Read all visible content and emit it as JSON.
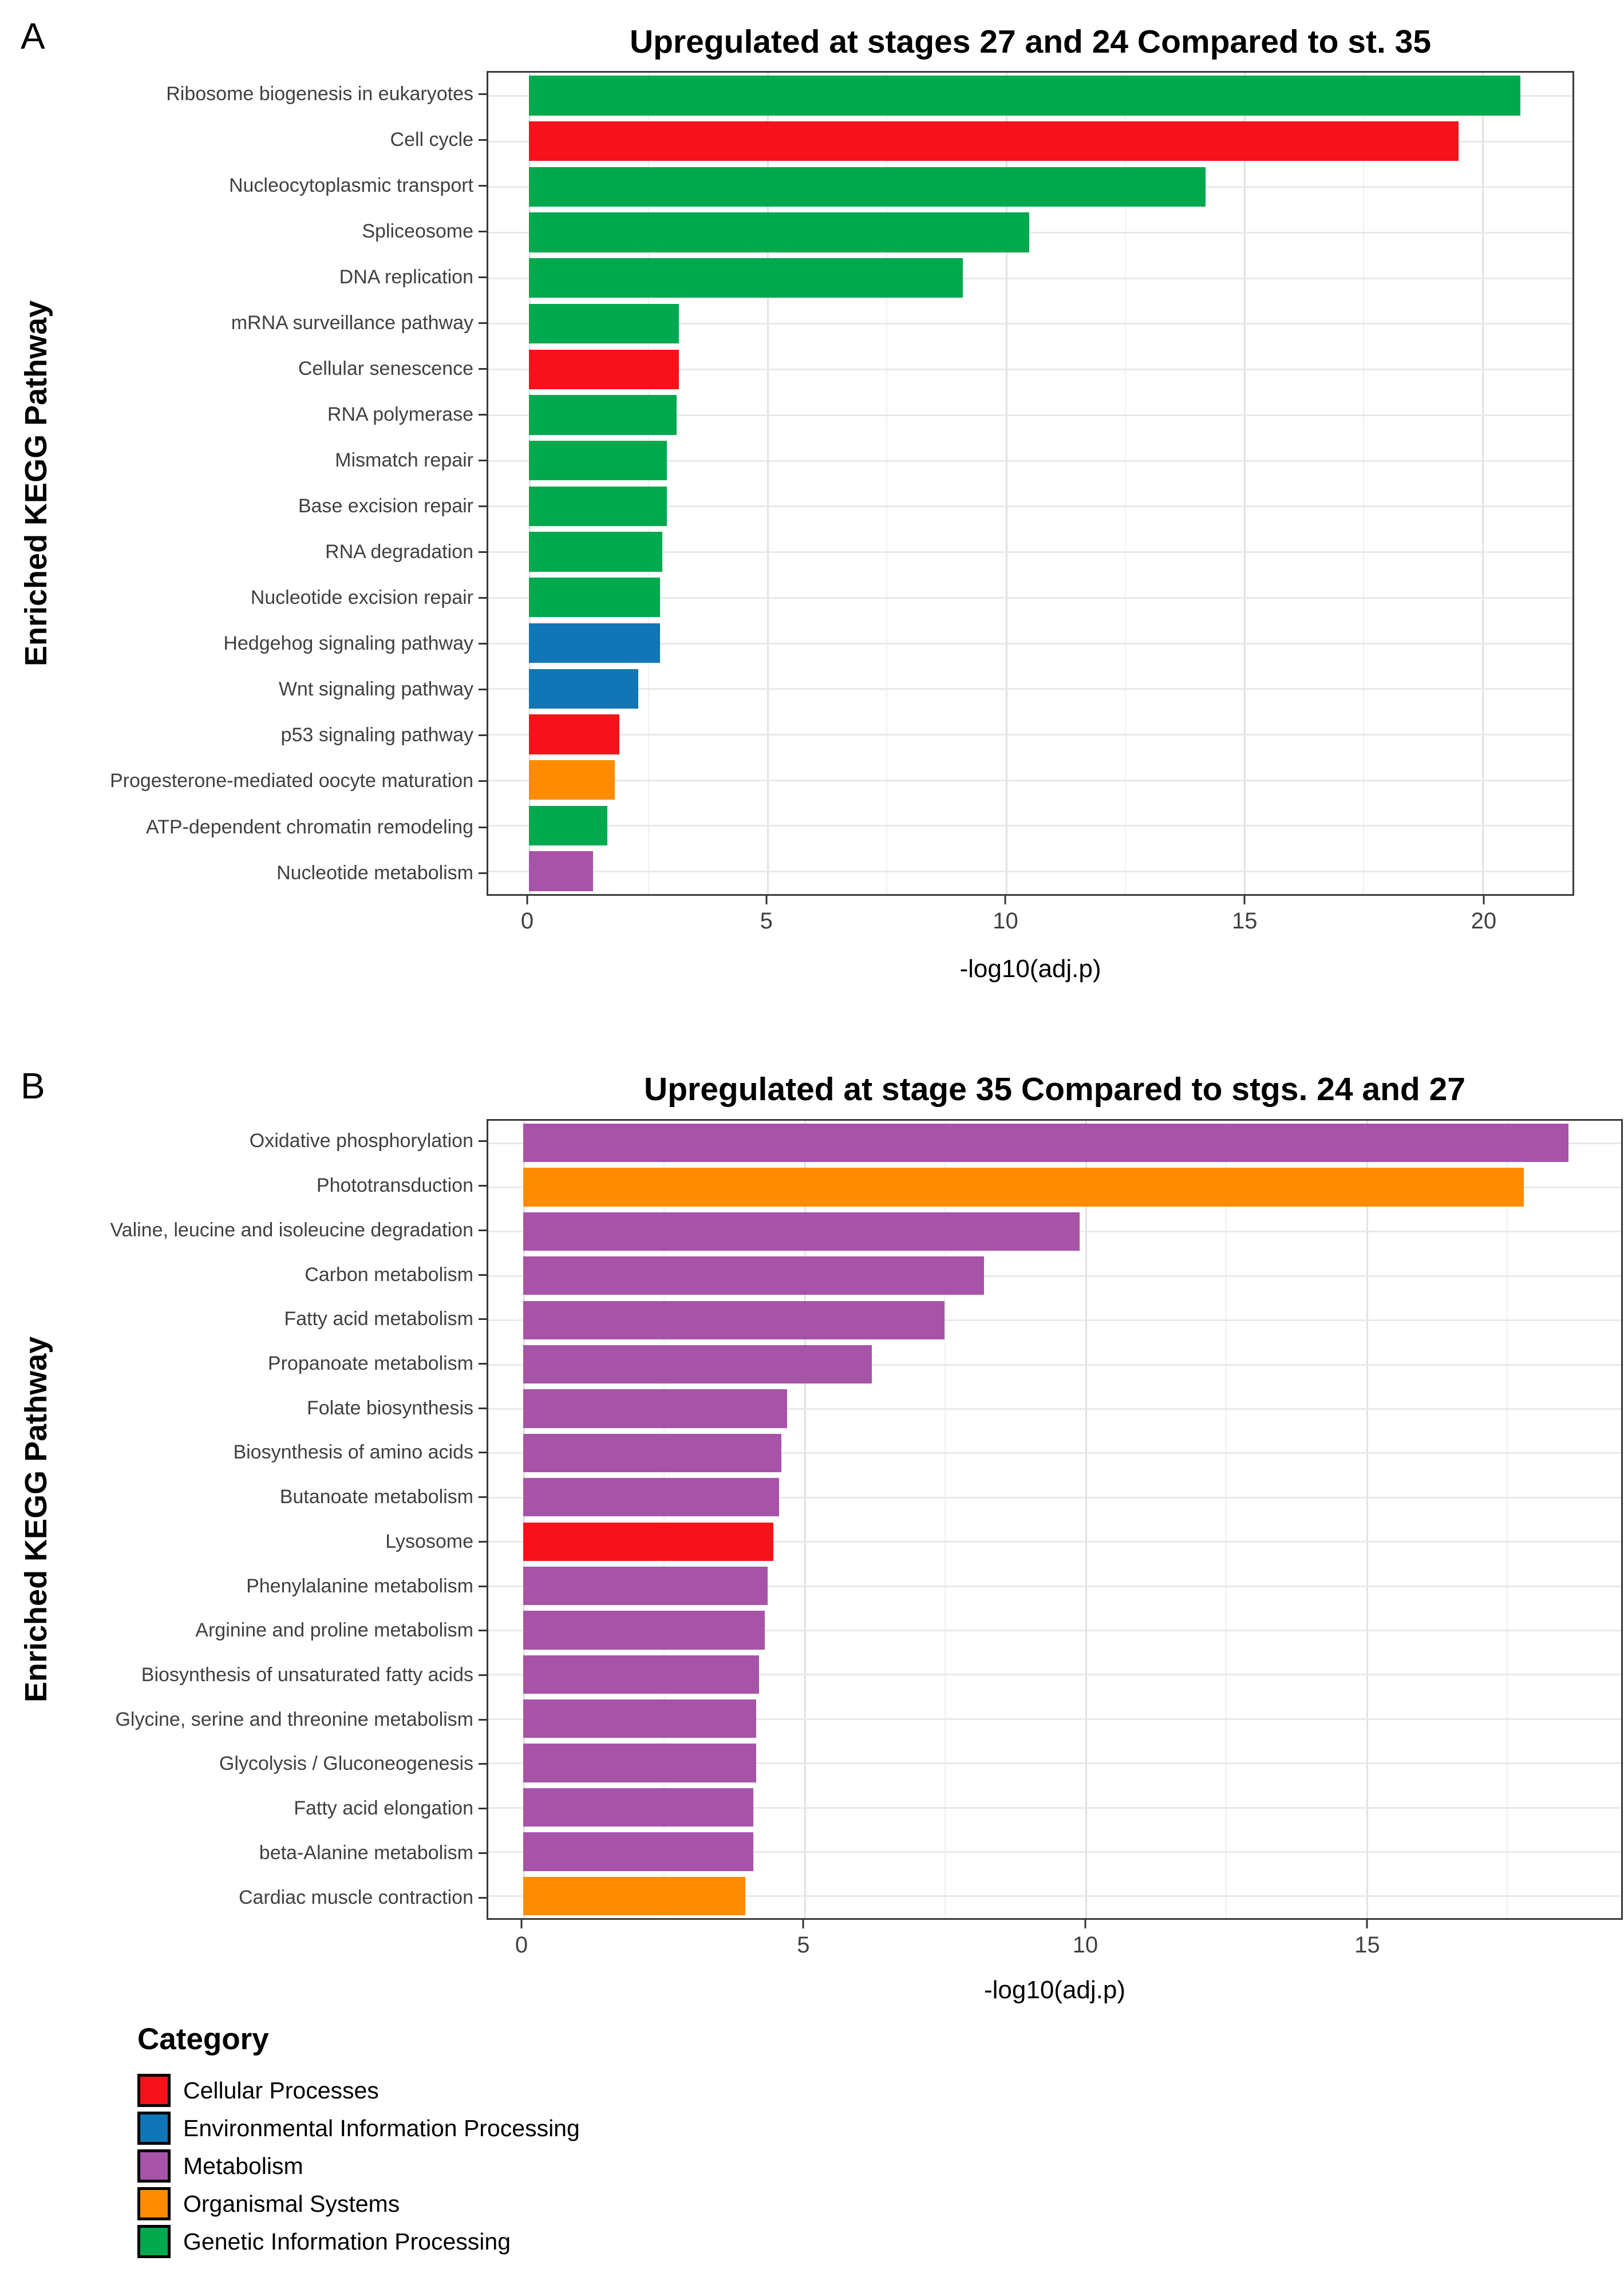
{
  "colors": {
    "Cellular Processes": "#f5121b",
    "Environmental Information Processing": "#1076b5",
    "Metabolism": "#a653a8",
    "Organismal Systems": "#ff8c00",
    "Genetic Information Processing": "#00a94d"
  },
  "legend": {
    "title": "Category",
    "items": [
      {
        "label": "Cellular Processes",
        "color": "#f5121b"
      },
      {
        "label": "Environmental Information Processing",
        "color": "#1076b5"
      },
      {
        "label": "Metabolism",
        "color": "#a653a8"
      },
      {
        "label": "Organismal Systems",
        "color": "#ff8c00"
      },
      {
        "label": "Genetic Information Processing",
        "color": "#00a94d"
      }
    ]
  },
  "chart_data": [
    {
      "type": "bar",
      "orientation": "horizontal",
      "panel_label": "A",
      "title": "Upregulated at stages 27 and 24 Compared to st. 35",
      "xlabel": "-log10(adj.p)",
      "ylabel": "Enriched KEGG Pathway",
      "xlim": [
        0,
        21.8
      ],
      "xticks": [
        0,
        5,
        10,
        15,
        20
      ],
      "minor_xticks": [
        2.5,
        7.5,
        12.5,
        17.5
      ],
      "grid": "major+minor",
      "legend_position": "none",
      "categories": [
        "Ribosome biogenesis in eukaryotes",
        "Cell cycle",
        "Nucleocytoplasmic transport",
        "Spliceosome",
        "DNA replication",
        "mRNA surveillance pathway",
        "Cellular senescence",
        "RNA polymerase",
        "Mismatch repair",
        "Base excision repair",
        "RNA degradation",
        "Nucleotide excision repair",
        "Hedgehog signaling pathway",
        "Wnt signaling pathway",
        "p53 signaling pathway",
        "Progesterone-mediated oocyte maturation",
        "ATP-dependent chromatin remodeling",
        "Nucleotide metabolism"
      ],
      "values": [
        20.8,
        19.5,
        14.2,
        10.5,
        9.1,
        3.15,
        3.15,
        3.1,
        2.9,
        2.9,
        2.8,
        2.75,
        2.75,
        2.3,
        1.9,
        1.8,
        1.65,
        1.35
      ],
      "bar_categories": [
        "Genetic Information Processing",
        "Cellular Processes",
        "Genetic Information Processing",
        "Genetic Information Processing",
        "Genetic Information Processing",
        "Genetic Information Processing",
        "Cellular Processes",
        "Genetic Information Processing",
        "Genetic Information Processing",
        "Genetic Information Processing",
        "Genetic Information Processing",
        "Genetic Information Processing",
        "Environmental Information Processing",
        "Environmental Information Processing",
        "Cellular Processes",
        "Organismal Systems",
        "Genetic Information Processing",
        "Metabolism"
      ]
    },
    {
      "type": "bar",
      "orientation": "horizontal",
      "panel_label": "B",
      "title": "Upregulated at stage 35 Compared to stgs. 24 and 27",
      "xlabel": "-log10(adj.p)",
      "ylabel": "Enriched KEGG Pathway",
      "xlim": [
        0,
        19.5
      ],
      "xticks": [
        0,
        5,
        10,
        15
      ],
      "minor_xticks": [
        2.5,
        7.5,
        12.5,
        17.5
      ],
      "grid": "major+minor",
      "legend_position": "none",
      "categories": [
        "Oxidative phosphorylation",
        "Phototransduction",
        "Valine, leucine and isoleucine degradation",
        "Carbon metabolism",
        "Fatty acid metabolism",
        "Propanoate metabolism",
        "Folate biosynthesis",
        "Biosynthesis of amino acids",
        "Butanoate metabolism",
        "Lysosome",
        "Phenylalanine metabolism",
        "Arginine and proline metabolism",
        "Biosynthesis of unsaturated fatty acids",
        "Glycine, serine and threonine metabolism",
        "Glycolysis / Gluconeogenesis",
        "Fatty acid elongation",
        "beta-Alanine metabolism",
        "Cardiac muscle contraction"
      ],
      "values": [
        18.6,
        17.8,
        9.9,
        8.2,
        7.5,
        6.2,
        4.7,
        4.6,
        4.55,
        4.45,
        4.35,
        4.3,
        4.2,
        4.15,
        4.15,
        4.1,
        4.1,
        3.95
      ],
      "bar_categories": [
        "Metabolism",
        "Organismal Systems",
        "Metabolism",
        "Metabolism",
        "Metabolism",
        "Metabolism",
        "Metabolism",
        "Metabolism",
        "Metabolism",
        "Cellular Processes",
        "Metabolism",
        "Metabolism",
        "Metabolism",
        "Metabolism",
        "Metabolism",
        "Metabolism",
        "Metabolism",
        "Organismal Systems"
      ]
    }
  ]
}
